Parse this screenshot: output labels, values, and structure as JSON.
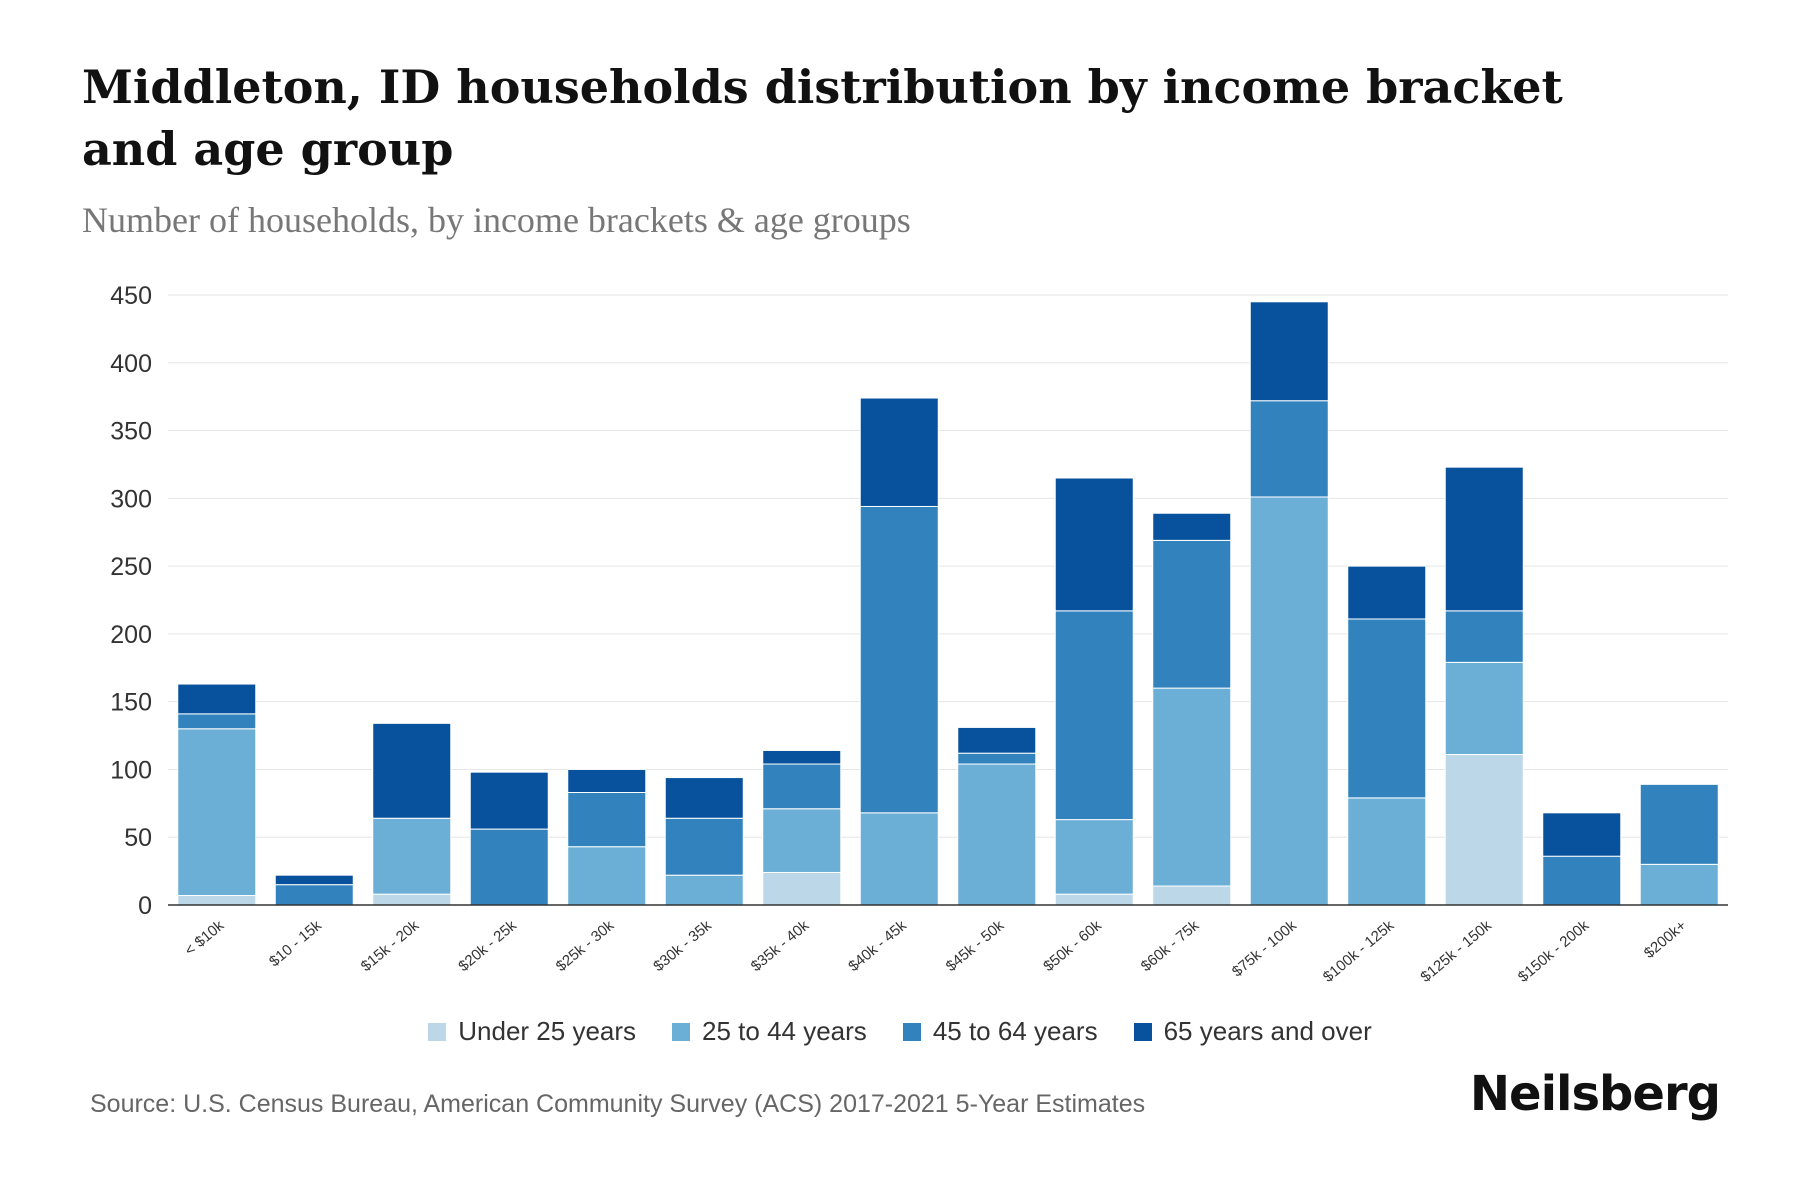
{
  "colors": {
    "under_25": "#bcd7e8",
    "age_25_44": "#6baed6",
    "age_45_64": "#3182bd",
    "age_65_plus": "#08519c",
    "grid": "#e6e6e6",
    "axis": "#333333"
  },
  "chart_data": {
    "type": "bar",
    "stacked": true,
    "title": "Middleton, ID households distribution by income bracket and age group",
    "subtitle": "Number of households, by income brackets & age groups",
    "xlabel": "",
    "ylabel": "",
    "ylim": [
      0,
      450
    ],
    "yticks": [
      0,
      50,
      100,
      150,
      200,
      250,
      300,
      350,
      400,
      450
    ],
    "grid": true,
    "legend_position": "bottom",
    "categories": [
      "< $10k",
      "$10 - 15k",
      "$15k - 20k",
      "$20k - 25k",
      "$25k - 30k",
      "$30k - 35k",
      "$35k - 40k",
      "$40k - 45k",
      "$45k - 50k",
      "$50k - 60k",
      "$60k - 75k",
      "$75k - 100k",
      "$100k - 125k",
      "$125k - 150k",
      "$150k - 200k",
      "$200k+"
    ],
    "series": [
      {
        "name": "Under 25 years",
        "color_key": "under_25",
        "values": [
          7,
          0,
          8,
          0,
          0,
          0,
          24,
          0,
          0,
          8,
          14,
          0,
          0,
          111,
          0,
          0
        ]
      },
      {
        "name": "25 to 44 years",
        "color_key": "age_25_44",
        "values": [
          123,
          0,
          56,
          0,
          43,
          22,
          47,
          68,
          104,
          55,
          146,
          301,
          79,
          68,
          0,
          30
        ]
      },
      {
        "name": "45 to 64 years",
        "color_key": "age_45_64",
        "values": [
          11,
          15,
          0,
          56,
          40,
          42,
          33,
          226,
          8,
          154,
          109,
          71,
          132,
          38,
          36,
          59
        ]
      },
      {
        "name": "65 years and over",
        "color_key": "age_65_plus",
        "values": [
          22,
          7,
          70,
          42,
          17,
          30,
          10,
          80,
          19,
          98,
          20,
          73,
          39,
          106,
          32,
          0
        ]
      }
    ]
  },
  "footer": {
    "source": "Source: U.S. Census Bureau, American Community Survey (ACS) 2017-2021 5-Year Estimates",
    "brand": "Neilsberg"
  }
}
